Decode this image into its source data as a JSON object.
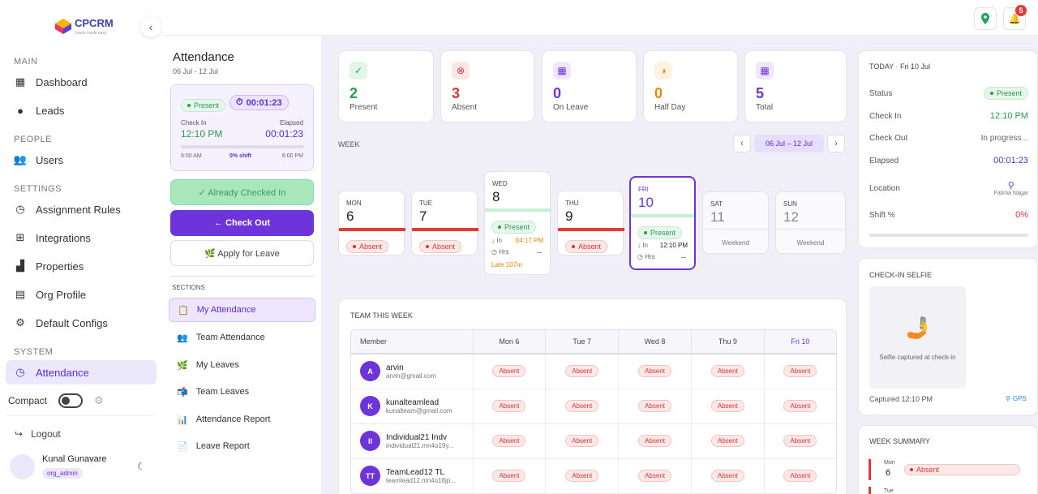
{
  "brand": {
    "name": "CPCRM",
    "tagline": "Leads made easy"
  },
  "sidebar": {
    "sections": [
      {
        "label": "MAIN",
        "items": [
          {
            "label": "Dashboard",
            "icon": "dashboard-icon"
          },
          {
            "label": "Leads",
            "icon": "person-icon"
          }
        ]
      },
      {
        "label": "PEOPLE",
        "items": [
          {
            "label": "Users",
            "icon": "users-icon"
          }
        ]
      },
      {
        "label": "SETTINGS",
        "items": [
          {
            "label": "Assignment Rules",
            "icon": "clock-icon"
          },
          {
            "label": "Integrations",
            "icon": "plug-icon"
          },
          {
            "label": "Properties",
            "icon": "building-icon"
          },
          {
            "label": "Org Profile",
            "icon": "org-icon"
          },
          {
            "label": "Default Configs",
            "icon": "gear-icon"
          }
        ]
      },
      {
        "label": "SYSTEM",
        "items": [
          {
            "label": "Attendance",
            "icon": "clock-icon"
          }
        ]
      }
    ],
    "compact_label": "Compact",
    "logout_label": "Logout",
    "user": {
      "name": "Kunal Gunavare",
      "role": "org_admin"
    }
  },
  "topbar": {
    "notifications": "5"
  },
  "attendance": {
    "title": "Attendance",
    "range": "06 Jul - 12 Jul",
    "status_pill": "Present",
    "timer": "00:01:23",
    "check_in_label": "Check In",
    "check_in_time": "12:10 PM",
    "elapsed_label": "Elapsed",
    "elapsed_time": "00:01:23",
    "shift_start": "9:00 AM",
    "shift_pct": "0% shift",
    "shift_end": "6:00 PM",
    "shift_progress": 0,
    "already_checked_in": "✓ Already Checked In",
    "check_out": "← Check Out",
    "apply_leave": "🌿 Apply for Leave",
    "sections_label": "SECTIONS",
    "sections": [
      {
        "label": "My Attendance",
        "icon": "📋"
      },
      {
        "label": "Team Attendance",
        "icon": "👥"
      },
      {
        "label": "My Leaves",
        "icon": "🌿"
      },
      {
        "label": "Team Leaves",
        "icon": "📬"
      },
      {
        "label": "Attendance Report",
        "icon": "📊"
      },
      {
        "label": "Leave Report",
        "icon": "📄"
      }
    ]
  },
  "stats": [
    {
      "value": "2",
      "label": "Present",
      "color": "#2e9a4f",
      "bg": "#e3f5e8",
      "icon": "✓"
    },
    {
      "value": "3",
      "label": "Absent",
      "color": "#d93636",
      "bg": "#fde6e6",
      "icon": "⊗"
    },
    {
      "value": "0",
      "label": "On Leave",
      "color": "#6d35d9",
      "bg": "#efe8fd",
      "icon": "▦"
    },
    {
      "value": "0",
      "label": "Half Day",
      "color": "#e08a00",
      "bg": "#fff3df",
      "icon": "◑"
    },
    {
      "value": "5",
      "label": "Total",
      "color": "#6d35d9",
      "bg": "#efe8fd",
      "icon": "▦"
    }
  ],
  "week": {
    "label": "WEEK",
    "range": "06 Jul – 12 Jul",
    "days": [
      {
        "name": "MON",
        "date": "6",
        "status": "Absent"
      },
      {
        "name": "TUE",
        "date": "7",
        "status": "Absent"
      },
      {
        "name": "WED",
        "date": "8",
        "status": "Present",
        "in_label": "↓ In",
        "in_time": "04:17 PM",
        "hrs_label": "◷ Hrs",
        "hrs": "--",
        "late": "Late 107m"
      },
      {
        "name": "THU",
        "date": "9",
        "status": "Absent"
      },
      {
        "name": "FRI",
        "date": "10",
        "status": "Present",
        "in_label": "↓ In",
        "in_time": "12:10 PM",
        "hrs_label": "◷ Hrs",
        "hrs": "--"
      },
      {
        "name": "SAT",
        "date": "11",
        "status": "Weekend"
      },
      {
        "name": "SUN",
        "date": "12",
        "status": "Weekend"
      }
    ]
  },
  "team": {
    "title": "TEAM THIS WEEK",
    "columns": [
      "Member",
      "Mon 6",
      "Tue 7",
      "Wed 8",
      "Thu 9",
      "Fri 10"
    ],
    "rows": [
      {
        "initials": "A",
        "name": "arvin",
        "email": "arvin@gmail.com",
        "statuses": [
          "Absent",
          "Absent",
          "Absent",
          "Absent",
          "Absent"
        ]
      },
      {
        "initials": "K",
        "name": "kunalteamlead",
        "email": "kunalteam@gmail.com",
        "statuses": [
          "Absent",
          "Absent",
          "Absent",
          "Absent",
          "Absent"
        ]
      },
      {
        "initials": "II",
        "name": "Individual21 Indv",
        "email": "individual21.mn4o19y...",
        "statuses": [
          "Absent",
          "Absent",
          "Absent",
          "Absent",
          "Absent"
        ]
      },
      {
        "initials": "TT",
        "name": "TeamLead12 TL",
        "email": "teamlead12.mn4o18jp...",
        "statuses": [
          "Absent",
          "Absent",
          "Absent",
          "Absent",
          "Absent"
        ]
      }
    ]
  },
  "today": {
    "title": "TODAY · Fri 10 Jul",
    "status_label": "Status",
    "status": "Present",
    "checkin_label": "Check In",
    "checkin": "12:10 PM",
    "checkout_label": "Check Out",
    "checkout": "In progress...",
    "elapsed_label": "Elapsed",
    "elapsed": "00:01:23",
    "location_label": "Location",
    "location": "Fatima Nagar",
    "shift_label": "Shift %",
    "shift": "0%"
  },
  "selfie": {
    "title": "CHECK-IN SELFIE",
    "caption": "Selfie captured at check-in",
    "captured": "Captured 12:10 PM",
    "gps": "GPS"
  },
  "summary": {
    "title": "WEEK SUMMARY",
    "day": "Mon",
    "date": "6",
    "status": "Absent",
    "next_day": "Tue"
  }
}
